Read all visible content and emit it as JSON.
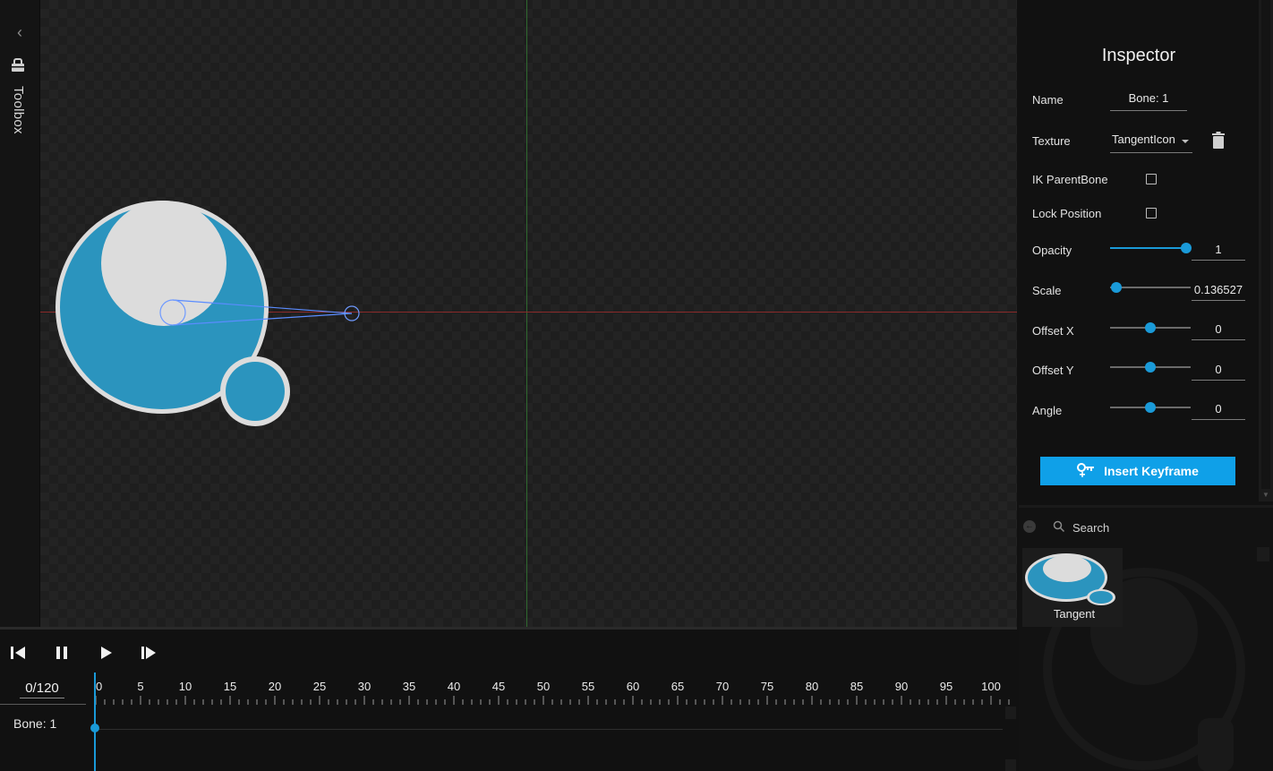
{
  "toolbox": {
    "label": "Toolbox",
    "collapse_icon": "chevron-left-icon",
    "icon": "toolbox-icon"
  },
  "inspector": {
    "title": "Inspector",
    "name_label": "Name",
    "name_value": "Bone: 1",
    "texture_label": "Texture",
    "texture_value": "TangentIcon",
    "ik_parent_label": "IK ParentBone",
    "ik_parent_checked": false,
    "lock_position_label": "Lock Position",
    "lock_position_checked": false,
    "opacity": {
      "label": "Opacity",
      "value": "1",
      "level": 0.94
    },
    "scale": {
      "label": "Scale",
      "value": "0.136527",
      "level": 0.08
    },
    "offset_x": {
      "label": "Offset X",
      "value": "0",
      "level": 0.5
    },
    "offset_y": {
      "label": "Offset Y",
      "value": "0",
      "level": 0.5
    },
    "angle": {
      "label": "Angle",
      "value": "0",
      "level": 0.5
    },
    "insert_keyframe_label": "Insert Keyframe"
  },
  "assets": {
    "search_placeholder": "Search",
    "items": [
      {
        "label": "Tangent"
      }
    ]
  },
  "timeline": {
    "frame_counter": "0/120",
    "ruler_labels": [
      "0",
      "5",
      "10",
      "15",
      "20",
      "25",
      "30",
      "35",
      "40",
      "45",
      "50",
      "55",
      "60",
      "65",
      "70",
      "75",
      "80",
      "85",
      "90",
      "95",
      "100"
    ],
    "track_label": "Bone: 1",
    "current_frame": 0
  },
  "colors": {
    "accent": "#0fa0e8",
    "sprite_blue": "#2b94be",
    "sprite_light": "#dcdcdc"
  }
}
